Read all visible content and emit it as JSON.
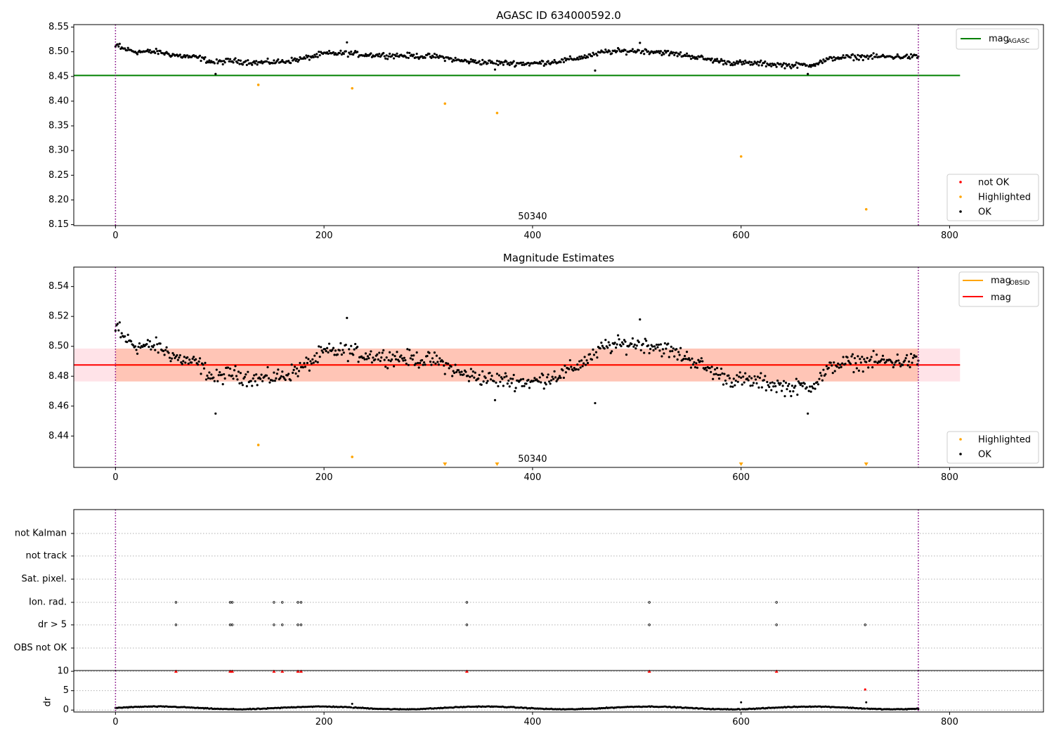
{
  "chart_data": [
    {
      "type": "scatter",
      "title": "AGASC ID 634000592.0",
      "xlabel": "",
      "ylabel": "",
      "xlim": [
        -40,
        890
      ],
      "ylim": [
        8.148,
        8.555
      ],
      "xticks": [
        0,
        200,
        400,
        600,
        800
      ],
      "yticks": [
        8.15,
        8.2,
        8.25,
        8.3,
        8.35,
        8.4,
        8.45,
        8.5,
        8.55
      ],
      "annotation": "50340",
      "series": [
        {
          "name": "OK",
          "color": "#000000",
          "n_points": 770,
          "x_range": [
            0,
            770
          ],
          "description": "dense per-frame magnitudes between ~8.455 and ~8.52"
        },
        {
          "name": "Highlighted",
          "color": "#ffa500",
          "x": [
            137,
            227,
            316,
            366,
            600,
            720
          ],
          "y": [
            8.433,
            8.426,
            8.395,
            8.376,
            8.288,
            8.181
          ]
        },
        {
          "name": "not OK",
          "color": "#ff0000",
          "x": [],
          "y": []
        }
      ],
      "lines": [
        {
          "name": "mag_AGASC",
          "color": "#008000",
          "y": 8.452,
          "x": [
            -40,
            810
          ]
        }
      ],
      "vlines": [
        0,
        770
      ],
      "legend_upper": [
        "mag_AGASC"
      ],
      "legend_upper_main": "mag",
      "legend_upper_sub": "AGASC",
      "legend_lower": [
        "not OK",
        "Highlighted",
        "OK"
      ],
      "grid": false
    },
    {
      "type": "scatter",
      "title": "Magnitude Estimates",
      "xlabel": "",
      "ylabel": "",
      "xlim": [
        -40,
        890
      ],
      "ylim": [
        8.419,
        8.553
      ],
      "xticks": [
        0,
        200,
        400,
        600,
        800
      ],
      "yticks": [
        8.44,
        8.46,
        8.48,
        8.5,
        8.52,
        8.54
      ],
      "annotation": "50340",
      "series": [
        {
          "name": "OK",
          "color": "#000000",
          "n_points": 770,
          "x_range": [
            0,
            770
          ],
          "description": "per-frame magnitudes between ~8.455 and ~8.518"
        },
        {
          "name": "Highlighted",
          "color": "#ffa500",
          "x": [
            137,
            227
          ],
          "y": [
            8.434,
            8.426
          ]
        },
        {
          "name": "Highlighted (clipped below axis)",
          "color": "#ffa500",
          "x": [
            316,
            366,
            600,
            720
          ]
        }
      ],
      "lines": [
        {
          "name": "mag_OBSID",
          "color": "#ffa500",
          "y": 8.4875,
          "x": [
            0,
            770
          ]
        },
        {
          "name": "mag",
          "color": "#ff0000",
          "y": 8.4875,
          "x": [
            -40,
            810
          ]
        }
      ],
      "bands": [
        {
          "color": "#ffc0cb",
          "y": [
            8.4765,
            8.4985
          ],
          "x": [
            -40,
            810
          ]
        },
        {
          "color": "#ffa07a",
          "y": [
            8.4765,
            8.4985
          ],
          "x": [
            0,
            770
          ]
        }
      ],
      "vlines": [
        0,
        770
      ],
      "legend_upper": [
        "mag_OBSID",
        "mag"
      ],
      "legend_upper_main": "mag",
      "legend_upper_sub": "OBSID",
      "legend_lower": [
        "Highlighted",
        "OK"
      ],
      "grid": false
    },
    {
      "type": "scatter",
      "title": "",
      "xlim": [
        -40,
        890
      ],
      "categories": [
        "not Kalman",
        "not track",
        "Sat. pixel.",
        "Ion. rad.",
        "dr > 5",
        "OBS not OK"
      ],
      "flags": {
        "Ion. rad.": [
          58,
          110,
          112,
          152,
          160,
          175,
          178,
          337,
          512,
          634
        ],
        "dr > 5": [
          58,
          110,
          112,
          152,
          160,
          175,
          178,
          337,
          512,
          634,
          719
        ]
      },
      "vlines": [
        0,
        770
      ],
      "grid": "y-dotted"
    },
    {
      "type": "scatter",
      "title": "",
      "ylabel": "dr",
      "xlim": [
        -40,
        890
      ],
      "ylim": [
        -0.5,
        10.2
      ],
      "xticks": [
        0,
        200,
        400,
        600,
        800
      ],
      "yticks": [
        0,
        5,
        10
      ],
      "series": [
        {
          "name": "dr",
          "color": "#000000",
          "n_points": 770,
          "x_range": [
            0,
            770
          ],
          "description": "mostly 0.2-1.2, outliers ~1.6 at x=227, ~2 at x=600 and x=720"
        },
        {
          "name": "dr > 5 (clipped)",
          "color": "#ff0000",
          "x": [
            58,
            110,
            112,
            152,
            160,
            175,
            178,
            337,
            512,
            634
          ],
          "y": [
            10,
            10,
            10,
            10,
            10,
            10,
            10,
            10,
            10,
            10
          ]
        },
        {
          "name": "dr > 5",
          "color": "#ff0000",
          "x": [
            719
          ],
          "y": [
            5.3
          ]
        }
      ],
      "vlines": [
        0,
        770
      ],
      "grid": "y-dotted"
    }
  ]
}
